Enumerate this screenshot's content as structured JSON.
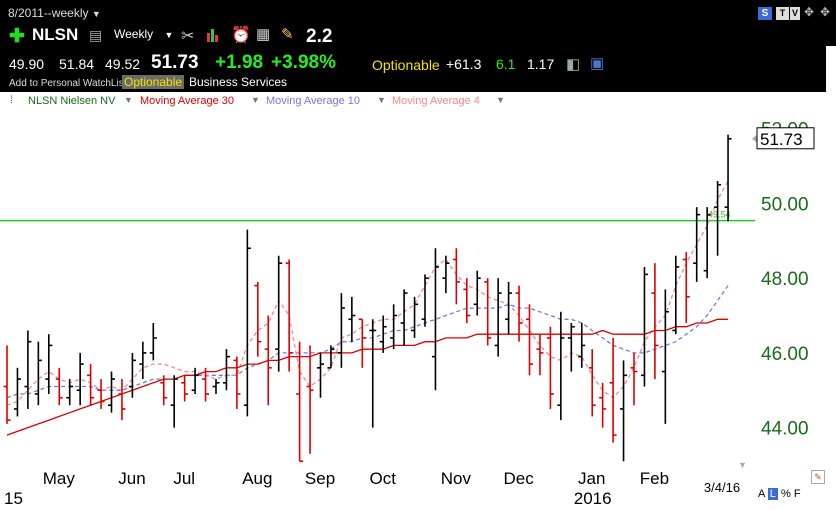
{
  "header": {
    "date_range": "8/2011--weekly",
    "symbol": "NLSN",
    "interval": "Weekly",
    "rs_value": "2.2",
    "open": "49.90",
    "high": "51.84",
    "low": "49.52",
    "last": "51.73",
    "change": "+1.98",
    "change_pct": "+3.98%",
    "optionable": "Optionable",
    "net": "+61.3",
    "val_green": "6.1",
    "val_white": "1.17",
    "watchlist_link": "Add to Personal WatchList",
    "optionable_badge": "Optionable",
    "sector": "Business Services",
    "badge_s": "S",
    "badge_t": "T",
    "badge_v": "V"
  },
  "legend": {
    "symbol_series": "NLSN Nielsen NV",
    "ma30": "Moving Average 30",
    "ma10": "Moving Average 10",
    "ma4": "Moving Average 4"
  },
  "colors": {
    "up": "#000000",
    "down": "#dd0000",
    "ma30": "#dd0000",
    "ma10": "#7777dd",
    "ma4": "#f08a8a",
    "hline": "#22cc22",
    "axis_text": "#1a6b1a"
  },
  "chart_data": {
    "type": "bar",
    "subtype": "ohlc",
    "ylim": [
      43.0,
      52.5
    ],
    "yticks": [
      "52.00",
      "50.00",
      "48.00",
      "46.00",
      "44.00"
    ],
    "ytick_values": [
      52,
      50,
      48,
      46,
      44
    ],
    "month_labels": [
      "May",
      "Jun",
      "Jul",
      "Aug",
      "Sep",
      "Oct",
      "Nov",
      "Dec",
      "Jan",
      "Feb"
    ],
    "month_bar_index": [
      4,
      11,
      16,
      23,
      29,
      35,
      42,
      48,
      55,
      61
    ],
    "year_labels": [
      {
        "label": "15",
        "bar_index": 0
      },
      {
        "label": "2016",
        "bar_index": 55
      }
    ],
    "date_label": "3/4/16",
    "last_price_label": "51.73",
    "last_price": 51.73,
    "hline_value": 49.54,
    "hline_label": "49.54",
    "bars": [
      {
        "h": 46.2,
        "l": 44.1,
        "o": 45.1,
        "c": 44.2
      },
      {
        "h": 45.6,
        "l": 44.3,
        "o": 44.5,
        "c": 45.3
      },
      {
        "h": 46.6,
        "l": 44.5,
        "o": 45.1,
        "c": 46.3
      },
      {
        "h": 46.3,
        "l": 44.6,
        "o": 44.9,
        "c": 45.8
      },
      {
        "h": 46.5,
        "l": 44.9,
        "o": 45.3,
        "c": 46.2
      },
      {
        "h": 45.6,
        "l": 44.6,
        "o": 45.3,
        "c": 44.8
      },
      {
        "h": 45.3,
        "l": 44.6,
        "o": 44.8,
        "c": 45.1
      },
      {
        "h": 46.0,
        "l": 44.6,
        "o": 45.0,
        "c": 45.7
      },
      {
        "h": 45.7,
        "l": 44.6,
        "o": 45.4,
        "c": 44.8
      },
      {
        "h": 45.3,
        "l": 44.5,
        "o": 45.0,
        "c": 44.7
      },
      {
        "h": 45.5,
        "l": 44.4,
        "o": 44.6,
        "c": 45.3
      },
      {
        "h": 45.3,
        "l": 44.2,
        "o": 44.9,
        "c": 44.5
      },
      {
        "h": 46.0,
        "l": 44.8,
        "o": 45.1,
        "c": 45.8
      },
      {
        "h": 46.3,
        "l": 45.3,
        "o": 45.7,
        "c": 46.0
      },
      {
        "h": 46.8,
        "l": 45.8,
        "o": 46.0,
        "c": 46.4
      },
      {
        "h": 45.4,
        "l": 44.6,
        "o": 45.2,
        "c": 44.8
      },
      {
        "h": 45.4,
        "l": 44.0,
        "o": 44.6,
        "c": 45.3
      },
      {
        "h": 45.4,
        "l": 44.7,
        "o": 45.2,
        "c": 44.9
      },
      {
        "h": 45.6,
        "l": 44.9,
        "o": 45.0,
        "c": 45.4
      },
      {
        "h": 45.6,
        "l": 44.7,
        "o": 45.3,
        "c": 44.9
      },
      {
        "h": 45.3,
        "l": 44.9,
        "o": 45.1,
        "c": 45.2
      },
      {
        "h": 46.1,
        "l": 45.0,
        "o": 45.2,
        "c": 45.9
      },
      {
        "h": 45.9,
        "l": 44.5,
        "o": 45.8,
        "c": 44.9
      },
      {
        "h": 49.3,
        "l": 44.3,
        "o": 44.6,
        "c": 48.8
      },
      {
        "h": 47.9,
        "l": 45.9,
        "o": 47.8,
        "c": 46.3
      },
      {
        "h": 47.0,
        "l": 44.6,
        "o": 46.1,
        "c": 45.6
      },
      {
        "h": 48.6,
        "l": 45.5,
        "o": 46.1,
        "c": 48.4
      },
      {
        "h": 48.5,
        "l": 45.5,
        "o": 48.4,
        "c": 46.0
      },
      {
        "h": 46.3,
        "l": 43.1,
        "o": 44.9,
        "c": 43.1
      },
      {
        "h": 46.2,
        "l": 43.3,
        "o": 45.1,
        "c": 45.0
      },
      {
        "h": 46.0,
        "l": 44.8,
        "o": 45.6,
        "c": 45.7
      },
      {
        "h": 46.2,
        "l": 45.6,
        "o": 45.6,
        "c": 46.1
      },
      {
        "h": 47.6,
        "l": 45.6,
        "o": 46.0,
        "c": 47.2
      },
      {
        "h": 47.5,
        "l": 46.3,
        "o": 46.9,
        "c": 47.0
      },
      {
        "h": 46.9,
        "l": 45.6,
        "o": 46.9,
        "c": 46.4
      },
      {
        "h": 46.9,
        "l": 44.0,
        "o": 46.6,
        "c": 46.6
      },
      {
        "h": 47.0,
        "l": 46.0,
        "o": 46.3,
        "c": 46.7
      },
      {
        "h": 47.3,
        "l": 46.1,
        "o": 46.4,
        "c": 47.0
      },
      {
        "h": 47.7,
        "l": 46.2,
        "o": 46.8,
        "c": 47.6
      },
      {
        "h": 47.5,
        "l": 46.4,
        "o": 46.6,
        "c": 47.3
      },
      {
        "h": 48.1,
        "l": 46.7,
        "o": 46.9,
        "c": 48.0
      },
      {
        "h": 48.8,
        "l": 45.0,
        "o": 45.9,
        "c": 48.3
      },
      {
        "h": 48.6,
        "l": 47.6,
        "o": 48.0,
        "c": 48.4
      },
      {
        "h": 48.8,
        "l": 47.3,
        "o": 48.5,
        "c": 47.9
      },
      {
        "h": 48.0,
        "l": 46.8,
        "o": 47.7,
        "c": 47.0
      },
      {
        "h": 48.2,
        "l": 47.0,
        "o": 47.3,
        "c": 48.0
      },
      {
        "h": 48.0,
        "l": 46.2,
        "o": 47.9,
        "c": 46.4
      },
      {
        "h": 48.0,
        "l": 45.9,
        "o": 46.2,
        "c": 47.6
      },
      {
        "h": 47.9,
        "l": 46.5,
        "o": 46.9,
        "c": 47.6
      },
      {
        "h": 47.8,
        "l": 46.3,
        "o": 47.6,
        "c": 46.8
      },
      {
        "h": 47.3,
        "l": 45.4,
        "o": 46.9,
        "c": 45.7
      },
      {
        "h": 46.5,
        "l": 45.4,
        "o": 46.1,
        "c": 46.0
      },
      {
        "h": 46.7,
        "l": 44.5,
        "o": 46.4,
        "c": 44.9
      },
      {
        "h": 47.1,
        "l": 44.2,
        "o": 44.6,
        "c": 46.4
      },
      {
        "h": 46.8,
        "l": 45.5,
        "o": 46.4,
        "c": 46.7
      },
      {
        "h": 46.8,
        "l": 45.6,
        "o": 45.9,
        "c": 46.2
      },
      {
        "h": 46.1,
        "l": 44.3,
        "o": 45.6,
        "c": 44.6
      },
      {
        "h": 45.2,
        "l": 44.0,
        "o": 44.8,
        "c": 44.5
      },
      {
        "h": 46.4,
        "l": 43.6,
        "o": 45.2,
        "c": 43.8
      },
      {
        "h": 45.8,
        "l": 43.1,
        "o": 44.5,
        "c": 45.4
      },
      {
        "h": 46.0,
        "l": 44.6,
        "o": 45.6,
        "c": 45.5
      },
      {
        "h": 48.3,
        "l": 45.1,
        "o": 45.4,
        "c": 48.1
      },
      {
        "h": 48.4,
        "l": 45.3,
        "o": 47.6,
        "c": 46.2
      },
      {
        "h": 47.7,
        "l": 44.1,
        "o": 45.5,
        "c": 47.1
      },
      {
        "h": 48.6,
        "l": 46.5,
        "o": 46.6,
        "c": 48.3
      },
      {
        "h": 48.7,
        "l": 46.8,
        "o": 48.5,
        "c": 47.5
      },
      {
        "h": 49.9,
        "l": 47.9,
        "o": 48.4,
        "c": 49.7
      },
      {
        "h": 49.9,
        "l": 48.0,
        "o": 48.2,
        "c": 49.7
      },
      {
        "h": 50.6,
        "l": 48.6,
        "o": 49.9,
        "c": 50.5
      },
      {
        "h": 51.84,
        "l": 49.52,
        "o": 49.9,
        "c": 51.73
      }
    ],
    "ma30": [
      43.8,
      43.9,
      44.0,
      44.1,
      44.2,
      44.3,
      44.4,
      44.5,
      44.6,
      44.7,
      44.8,
      44.9,
      45.0,
      45.1,
      45.2,
      45.3,
      45.3,
      45.4,
      45.4,
      45.5,
      45.5,
      45.6,
      45.6,
      45.7,
      45.7,
      45.8,
      45.8,
      45.9,
      45.9,
      45.9,
      46.0,
      46.0,
      46.0,
      46.0,
      46.1,
      46.1,
      46.1,
      46.2,
      46.2,
      46.2,
      46.3,
      46.3,
      46.4,
      46.4,
      46.4,
      46.5,
      46.5,
      46.5,
      46.5,
      46.5,
      46.5,
      46.5,
      46.5,
      46.5,
      46.5,
      46.5,
      46.5,
      46.6,
      46.5,
      46.5,
      46.5,
      46.5,
      46.6,
      46.6,
      46.7,
      46.7,
      46.8,
      46.8,
      46.9,
      46.9
    ],
    "ma10": [
      44.8,
      44.9,
      44.9,
      45.0,
      45.1,
      45.1,
      45.1,
      45.1,
      45.1,
      45.0,
      45.0,
      45.0,
      45.1,
      45.2,
      45.3,
      45.3,
      45.3,
      45.4,
      45.4,
      45.4,
      45.4,
      45.4,
      45.4,
      45.6,
      45.7,
      45.8,
      46.0,
      46.0,
      46.0,
      46.0,
      46.0,
      46.1,
      46.3,
      46.3,
      46.4,
      46.4,
      46.5,
      46.6,
      46.6,
      46.7,
      46.8,
      46.9,
      47.0,
      47.1,
      47.2,
      47.2,
      47.2,
      47.2,
      47.3,
      47.2,
      47.2,
      47.1,
      47.0,
      46.9,
      46.9,
      46.8,
      46.6,
      46.4,
      46.2,
      46.1,
      46.0,
      46.0,
      46.1,
      46.2,
      46.3,
      46.5,
      46.7,
      47.0,
      47.4,
      47.8
    ],
    "ma4": [
      44.6,
      44.7,
      45.0,
      45.3,
      45.5,
      45.3,
      45.2,
      45.3,
      45.2,
      45.0,
      45.1,
      45.0,
      45.3,
      45.6,
      45.7,
      45.7,
      45.6,
      45.5,
      45.5,
      45.4,
      45.3,
      45.4,
      45.4,
      46.2,
      46.6,
      46.8,
      47.4,
      47.0,
      45.5,
      45.1,
      45.3,
      45.6,
      46.4,
      46.5,
      46.7,
      46.8,
      46.9,
      46.9,
      47.1,
      47.3,
      47.8,
      48.3,
      48.5,
      48.1,
      47.8,
      47.7,
      47.5,
      47.4,
      47.3,
      47.0,
      46.6,
      46.2,
      45.9,
      45.8,
      46.0,
      45.9,
      45.4,
      45.0,
      44.8,
      45.1,
      45.6,
      46.3,
      46.7,
      47.0,
      47.8,
      48.4,
      48.9,
      49.4,
      50.1,
      50.6
    ]
  }
}
